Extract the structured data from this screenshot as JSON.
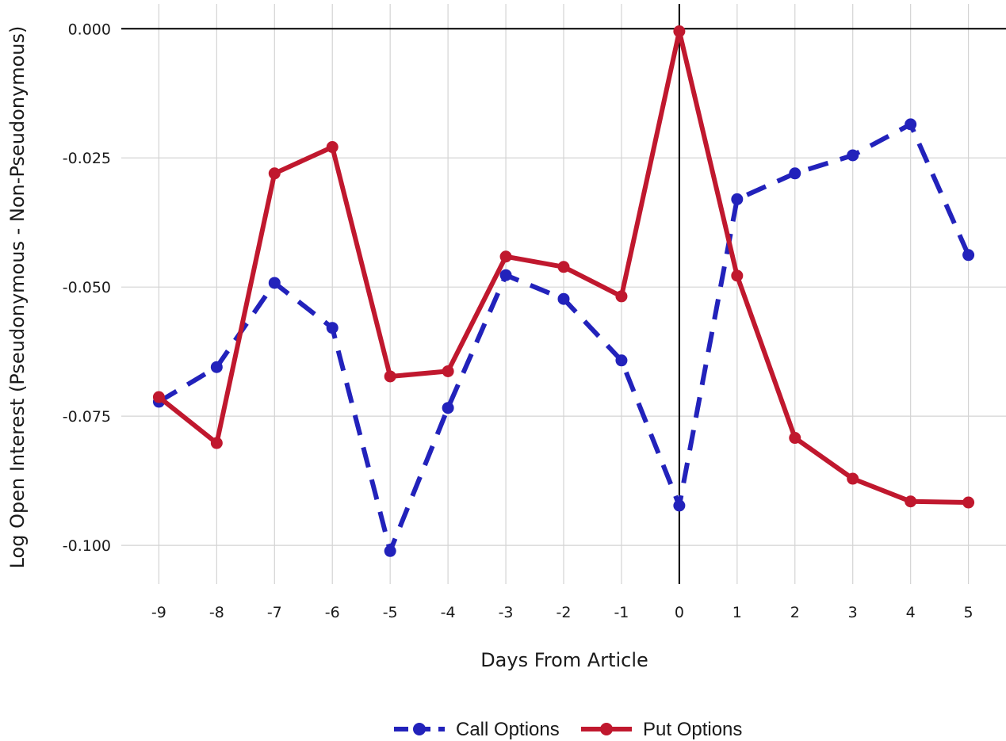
{
  "chart_data": {
    "type": "line",
    "xlabel": "Days From Article",
    "ylabel": "Log Open Interest (Pseudonymous - Non-Pseudonymous)",
    "x": [
      -9,
      -8,
      -7,
      -6,
      -5,
      -4,
      -3,
      -2,
      -1,
      0,
      1,
      2,
      3,
      4,
      5
    ],
    "xticks": [
      "-9",
      "-8",
      "-7",
      "-6",
      "-5",
      "-4",
      "-3",
      "-2",
      "-1",
      "0",
      "1",
      "2",
      "3",
      "4",
      "5"
    ],
    "yticks": [
      0.0,
      -0.025,
      -0.05,
      -0.075,
      -0.1
    ],
    "ytick_labels": [
      "0.000",
      "-0.025",
      "-0.050",
      "-0.075",
      "-0.100"
    ],
    "xlim": [
      -9.65,
      5.65
    ],
    "ylim": [
      -0.1075,
      0.0048
    ],
    "grid": true,
    "reference_lines": {
      "x": 0,
      "y": 0
    },
    "legend_position": "bottom-center",
    "series": [
      {
        "name": "Call Options",
        "color": "#2222bb",
        "style": "dashed",
        "values": [
          -0.0722,
          -0.0655,
          -0.0492,
          -0.0579,
          -0.1011,
          -0.0734,
          -0.0477,
          -0.0523,
          -0.0642,
          -0.0923,
          -0.033,
          -0.028,
          -0.0245,
          -0.0185,
          -0.0438
        ]
      },
      {
        "name": "Put Options",
        "color": "#c0182e",
        "style": "solid",
        "values": [
          -0.0713,
          -0.0802,
          -0.028,
          -0.0229,
          -0.0673,
          -0.0663,
          -0.0441,
          -0.0461,
          -0.0518,
          -0.0005,
          -0.0478,
          -0.0792,
          -0.0871,
          -0.0915,
          -0.0917
        ]
      }
    ]
  }
}
